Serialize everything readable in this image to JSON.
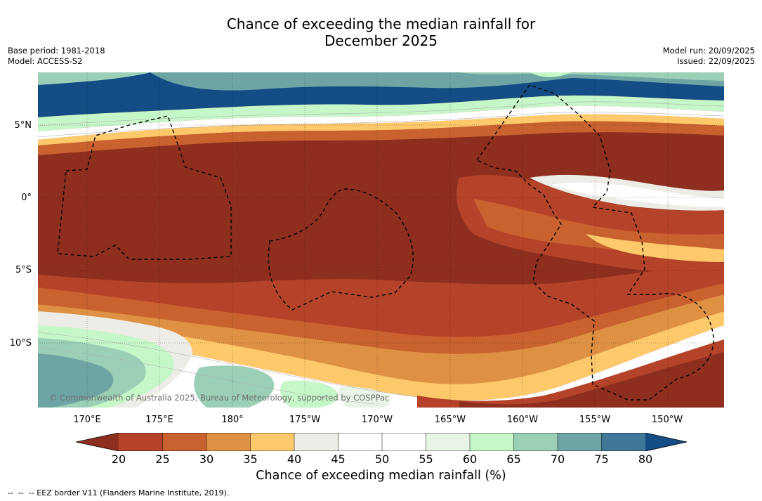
{
  "title_line1": "Chance of exceeding the median rainfall for",
  "title_line2": "December 2025",
  "base_period": "Base period: 1981-2018",
  "model": "Model: ACCESS-S2",
  "model_run": "Model run: 20/09/2025",
  "issued": "Issued: 22/09/2025",
  "copyright": "© Commonwealth of Australia 2025, Bureau of Meteorology, supported by COSPPac",
  "lat_labels": [
    "5°N",
    "0°",
    "5°S",
    "10°S"
  ],
  "lon_labels": [
    "170°E",
    "175°E",
    "180°",
    "175°W",
    "170°W",
    "165°W",
    "160°W",
    "155°W",
    "150°W"
  ],
  "colorbar": {
    "ticks": [
      "20",
      "25",
      "30",
      "35",
      "40",
      "45",
      "50",
      "55",
      "60",
      "65",
      "70",
      "75",
      "80"
    ],
    "title": "Chance of exceeding median rainfall (%)",
    "colors": {
      "below_20": "#8e2e1f",
      "c20_25": "#b5432a",
      "c25_30": "#c9622f",
      "c30_35": "#df9143",
      "c35_40": "#fdc96b",
      "c40_45": "#eeece7",
      "c45_50": "#ffffff",
      "c50_55": "#ffffff",
      "c55_60": "#e8f5e6",
      "c60_65": "#c5f7c8",
      "c65_70": "#9bcfb6",
      "c70_75": "#6ea5a4",
      "c75_80": "#41789a",
      "above_80": "#144c86"
    }
  },
  "legend_note": "--  --  -- EEZ border V11 (Flanders Marine Institute, 2019)."
}
